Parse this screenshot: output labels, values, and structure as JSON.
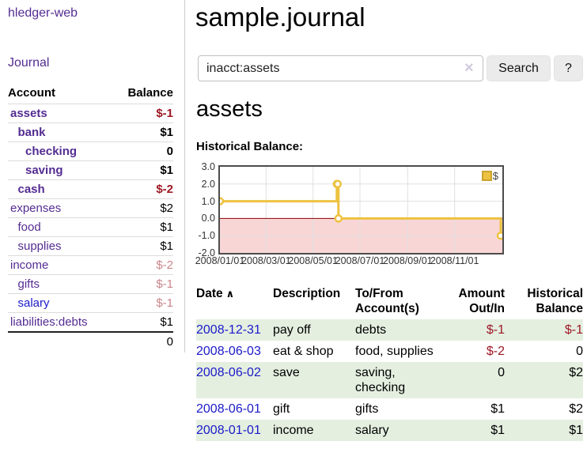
{
  "colors": {
    "link_purple": "#542c92",
    "link_blue": "#1c1ac9",
    "negative": "#9e1825",
    "negative_faded": "#cb858b",
    "row_shade_green": "#e4efe0",
    "series_yellow": "#edc240",
    "below_zero_pink": "#f9d6d6",
    "zero_line_red": "#8b0000",
    "grid_gray": "#e0e0e0",
    "frame_gray": "#4c4c4c"
  },
  "app": {
    "brand": "hledger-web",
    "nav_journal": "Journal"
  },
  "sidebar": {
    "accounts_header": {
      "account": "Account",
      "balance": "Balance"
    },
    "accounts": [
      {
        "name": "assets",
        "indent": 0,
        "bold": true,
        "link_color": "purple",
        "balance": "$-1",
        "amount_style": "negative"
      },
      {
        "name": "bank",
        "indent": 1,
        "bold": true,
        "link_color": "purple",
        "balance": "$1",
        "amount_style": "default"
      },
      {
        "name": "checking",
        "indent": 2,
        "bold": true,
        "link_color": "purple",
        "balance": "0",
        "amount_style": "default"
      },
      {
        "name": "saving",
        "indent": 2,
        "bold": true,
        "link_color": "purple",
        "balance": "$1",
        "amount_style": "default"
      },
      {
        "name": "cash",
        "indent": 1,
        "bold": true,
        "link_color": "purple",
        "balance": "$-2",
        "amount_style": "negative"
      },
      {
        "name": "expenses",
        "indent": 0,
        "bold": false,
        "link_color": "purple",
        "balance": "$2",
        "amount_style": "default"
      },
      {
        "name": "food",
        "indent": 1,
        "bold": false,
        "link_color": "purple",
        "balance": "$1",
        "amount_style": "default"
      },
      {
        "name": "supplies",
        "indent": 1,
        "bold": false,
        "link_color": "purple",
        "balance": "$1",
        "amount_style": "default"
      },
      {
        "name": "income",
        "indent": 0,
        "bold": false,
        "link_color": "purple",
        "balance": "$-2",
        "amount_style": "negative-faded"
      },
      {
        "name": "gifts",
        "indent": 1,
        "bold": false,
        "link_color": "purple",
        "balance": "$-1",
        "amount_style": "negative-faded"
      },
      {
        "name": "salary",
        "indent": 1,
        "bold": false,
        "link_color": "blue",
        "balance": "$-1",
        "amount_style": "negative-faded"
      },
      {
        "name": "liabilities:debts",
        "indent": 0,
        "bold": false,
        "link_color": "purple",
        "balance": "$1",
        "amount_style": "default"
      }
    ],
    "total": "0"
  },
  "header": {
    "title": "sample.journal"
  },
  "search": {
    "value": "inacct:assets",
    "clear_icon": "×",
    "button_label": "Search",
    "help_label": "?"
  },
  "main": {
    "account_title": "assets",
    "chart_label": "Historical Balance:"
  },
  "chart_data": {
    "type": "line",
    "step": true,
    "title": "Historical Balance",
    "series": [
      {
        "name": "$",
        "color": "#edc240",
        "points": [
          {
            "date": "2008-01-01",
            "value": 1
          },
          {
            "date": "2008-06-01",
            "value": 2
          },
          {
            "date": "2008-06-02",
            "value": 2
          },
          {
            "date": "2008-06-03",
            "value": 0
          },
          {
            "date": "2008-12-31",
            "value": -1
          }
        ]
      }
    ],
    "x_range": [
      "2008-01-01",
      "2008-12-31"
    ],
    "ylim": [
      -2,
      3
    ],
    "x_ticks": [
      {
        "label": "2008/01/01",
        "date": "2008-01-01"
      },
      {
        "label": "2008/03/01",
        "date": "2008-03-01"
      },
      {
        "label": "2008/05/01",
        "date": "2008-05-01"
      },
      {
        "label": "2008/07/01",
        "date": "2008-07-01"
      },
      {
        "label": "2008/09/01",
        "date": "2008-09-01"
      },
      {
        "label": "2008/11/01",
        "date": "2008-11-01"
      }
    ],
    "y_ticks": [
      {
        "label": "3.0",
        "value": 3
      },
      {
        "label": "2.0",
        "value": 2
      },
      {
        "label": "1.0",
        "value": 1
      },
      {
        "label": "0.0",
        "value": 0
      },
      {
        "label": "-1.0",
        "value": -1
      },
      {
        "label": "-2.0",
        "value": -2
      }
    ],
    "legend": {
      "label": "$",
      "swatch_color": "#edc240",
      "position": "top-right"
    },
    "grid": true
  },
  "register": {
    "columns": [
      "Date",
      "Description",
      "To/From Account(s)",
      "Amount Out/In",
      "Historical Balance"
    ],
    "sort_ascending_indicator": "∧",
    "rows": [
      {
        "date": "2008-12-31",
        "description": "pay off",
        "accounts": "debts",
        "amount": "$-1",
        "balance": "$-1"
      },
      {
        "date": "2008-06-03",
        "description": "eat & shop",
        "accounts": "food, supplies",
        "amount": "$-2",
        "balance": "0"
      },
      {
        "date": "2008-06-02",
        "description": "save",
        "accounts": "saving, checking",
        "amount": "0",
        "balance": "$2"
      },
      {
        "date": "2008-06-01",
        "description": "gift",
        "accounts": "gifts",
        "amount": "$1",
        "balance": "$2"
      },
      {
        "date": "2008-01-01",
        "description": "income",
        "accounts": "salary",
        "amount": "$1",
        "balance": "$1"
      }
    ]
  }
}
